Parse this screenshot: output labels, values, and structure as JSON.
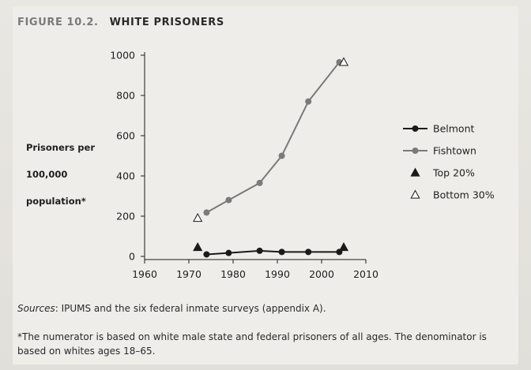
{
  "figure": {
    "number": "FIGURE 10.2.",
    "title": "WHITE PRISONERS"
  },
  "sources_label": "Sources",
  "sources_text": ": IPUMS and the six federal inmate surveys (appendix A).",
  "footnote": "*The numerator is based on white male state and federal prisoners of all ages. The denominator is based on whites ages 18–65.",
  "colors": {
    "belmont": "#1a1a1a",
    "fishtown": "#7a7a7a",
    "top20": "#1a1a1a",
    "bottom30": "#ffffff"
  },
  "chart_data": {
    "type": "line",
    "ylabel_lines": [
      "Prisoners per",
      "100,000",
      "population*"
    ],
    "xlabel": "",
    "xlim": [
      1960,
      2010
    ],
    "ylim": [
      0,
      1000
    ],
    "xticks": [
      1960,
      1970,
      1980,
      1990,
      2000,
      2010
    ],
    "yticks": [
      0,
      200,
      400,
      600,
      800,
      1000
    ],
    "grid": false,
    "legend_position": "right",
    "series": [
      {
        "name": "Belmont",
        "marker": "circle",
        "color": "#1a1a1a",
        "points": [
          [
            1974,
            10
          ],
          [
            1979,
            17
          ],
          [
            1986,
            28
          ],
          [
            1991,
            22
          ],
          [
            1997,
            22
          ],
          [
            2004,
            22
          ]
        ]
      },
      {
        "name": "Fishtown",
        "marker": "circle",
        "color": "#7a7a7a",
        "points": [
          [
            1974,
            218
          ],
          [
            1979,
            280
          ],
          [
            1986,
            365
          ],
          [
            1991,
            500
          ],
          [
            1997,
            770
          ],
          [
            2004,
            965
          ]
        ]
      },
      {
        "name": "Top 20%",
        "marker": "triangle-filled",
        "color": "#1a1a1a",
        "points": [
          [
            1972,
            45
          ],
          [
            2005,
            45
          ]
        ]
      },
      {
        "name": "Bottom 30%",
        "marker": "triangle-open",
        "color": "#1a1a1a",
        "points": [
          [
            1972,
            190
          ],
          [
            2005,
            965
          ]
        ]
      }
    ]
  }
}
